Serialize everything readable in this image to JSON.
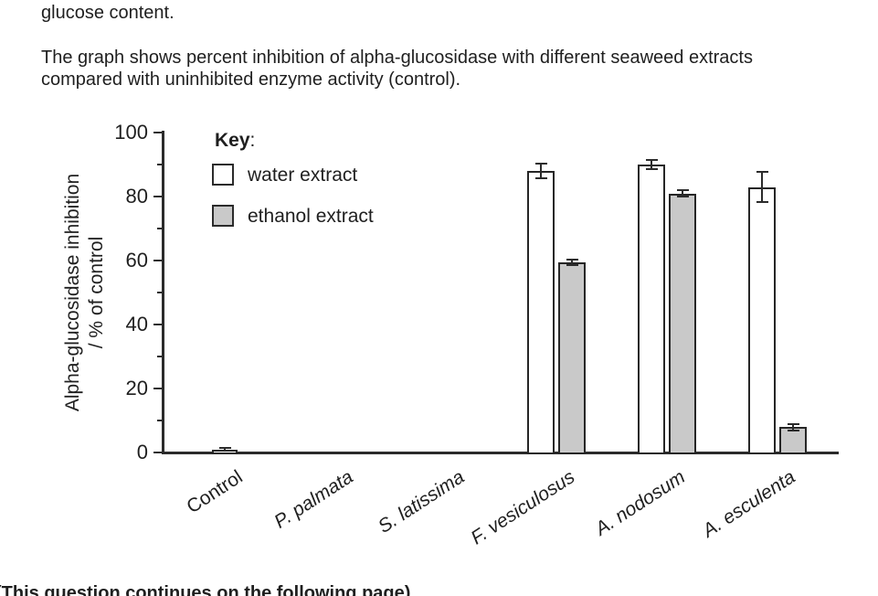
{
  "texts": {
    "top_line": "glucose content.",
    "para_line1": "The graph shows percent inhibition of alpha-glucosidase with different seaweed extracts",
    "para_line2": "compared with uninhibited enzyme activity (control).",
    "footer": "(This question continues on the following page)"
  },
  "chart_data": {
    "type": "bar",
    "title": "",
    "ylabel_lines": [
      "Alpha-glucosidase inhibition",
      "/ % of control"
    ],
    "xlabel": "",
    "ylim": [
      0,
      100
    ],
    "major_yticks": [
      0,
      20,
      40,
      60,
      80,
      100
    ],
    "minor_yticks": [
      10,
      30,
      50,
      70,
      90
    ],
    "grid": "off",
    "axis_color": "#2b2b2b",
    "legend": {
      "title_bold": "Key",
      "title_suffix": ":",
      "position": "top-left-inside",
      "entries": [
        {
          "series": "water",
          "label": "water extract",
          "fill": "#ffffff"
        },
        {
          "series": "ethanol",
          "label": "ethanol extract",
          "fill": "#c9c9c9"
        }
      ]
    },
    "categories": [
      {
        "label": "Control",
        "italic": false
      },
      {
        "label": "P. palmata",
        "italic": true
      },
      {
        "label": "S. latissima",
        "italic": true
      },
      {
        "label": "F. vesiculosus",
        "italic": true
      },
      {
        "label": "A. nodosum",
        "italic": true
      },
      {
        "label": "A. esculenta",
        "italic": true
      }
    ],
    "series": [
      {
        "name": "water extract",
        "fill": "#ffffff",
        "values": [
          null,
          0,
          0,
          88,
          90,
          83
        ],
        "errors": [
          null,
          null,
          null,
          2.3,
          1.4,
          4.7
        ]
      },
      {
        "name": "ethanol extract",
        "fill": "#c9c9c9",
        "values": [
          null,
          0,
          0,
          59.5,
          81,
          8
        ],
        "errors": [
          null,
          null,
          null,
          0.9,
          1.1,
          1.0
        ]
      }
    ],
    "control_bar": {
      "category": "Control",
      "value": 1,
      "error": 0.4,
      "fill": "#ffffff"
    }
  }
}
